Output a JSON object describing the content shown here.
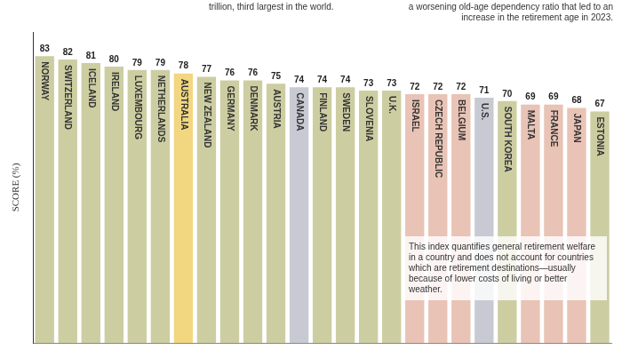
{
  "chart_data": {
    "type": "bar",
    "y_label": "SCORE (%)",
    "annotations": [
      "trillion, third largest in the world.",
      "a worsening old-age dependency ratio that led to an increase in the retirement age in 2023.",
      "This index quantifies general retirement welfare in a country and does not account for countries which are retirement destinations—usually because of lower costs of living or better weather."
    ],
    "categories": [
      "NORWAY",
      "SWITZERLAND",
      "ICELAND",
      "IRELAND",
      "LUXEMBOURG",
      "NETHERLANDS",
      "AUSTRALIA",
      "NEW ZEALAND",
      "GERMANY",
      "DENMARK",
      "AUSTRIA",
      "CANADA",
      "FINLAND",
      "SWEDEN",
      "SLOVENIA",
      "U.K.",
      "ISRAEL",
      "CZECH REPUBLIC",
      "BELGIUM",
      "U.S.",
      "SOUTH KOREA",
      "MALTA",
      "FRANCE",
      "JAPAN",
      "ESTONIA"
    ],
    "values": [
      83,
      82,
      81,
      80,
      79,
      79,
      78,
      77,
      76,
      76,
      75,
      74,
      74,
      74,
      73,
      73,
      72,
      72,
      72,
      71,
      70,
      69,
      69,
      68,
      67
    ],
    "colors": [
      "#cdcda2",
      "#cdcda2",
      "#cdcda2",
      "#cdcda2",
      "#cdcda2",
      "#cdcda2",
      "#f2d680",
      "#cdcda2",
      "#cdcda2",
      "#cdcda2",
      "#cdcda2",
      "#c7cad3",
      "#cdcda2",
      "#cdcda2",
      "#cdcda2",
      "#cdcda2",
      "#e8c3b6",
      "#e8c3b6",
      "#e8c3b6",
      "#c7cad3",
      "#cdcda2",
      "#e8c3b6",
      "#e8c3b6",
      "#e8c3b6",
      "#cdcda2"
    ],
    "ylim": [
      0,
      90
    ],
    "grid": false,
    "tick_labels": false,
    "data_labels": true,
    "legend": null
  }
}
